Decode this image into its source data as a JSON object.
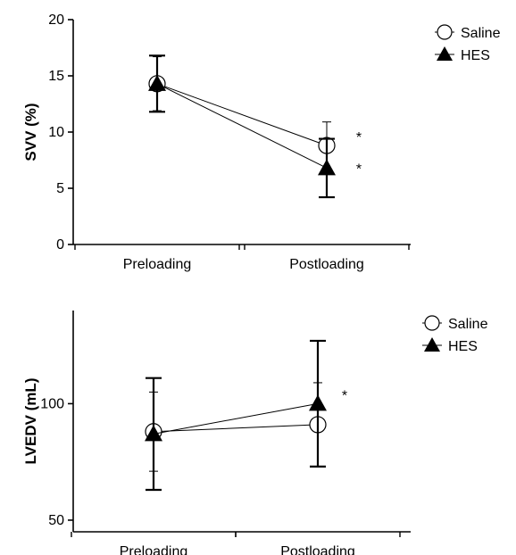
{
  "chart_data": [
    {
      "type": "line",
      "ylabel": "SVV (%)",
      "categories": [
        "Preloading",
        "Postloading"
      ],
      "ylim": [
        0,
        20
      ],
      "yticks": [
        "0",
        "5",
        "10",
        "15",
        "20"
      ],
      "legend": {
        "placement": "top-right"
      },
      "series": [
        {
          "name": "Saline",
          "marker": "open-circle",
          "values": [
            14.3,
            8.8
          ],
          "error": [
            2.4,
            2.1
          ]
        },
        {
          "name": "HES",
          "marker": "filled-triangle",
          "values": [
            14.3,
            6.8
          ],
          "error": [
            2.5,
            2.6
          ]
        }
      ],
      "annotations": [
        {
          "text": "*",
          "category": "Postloading",
          "series": "Saline"
        },
        {
          "text": "*",
          "category": "Postloading",
          "series": "HES"
        }
      ]
    },
    {
      "type": "line",
      "ylabel": "LVEDV (mL)",
      "categories": [
        "Preloading",
        "Postloading"
      ],
      "ylim": [
        45,
        140
      ],
      "yticks": [
        "50",
        "100"
      ],
      "legend": {
        "placement": "top-right"
      },
      "series": [
        {
          "name": "Saline",
          "marker": "open-circle",
          "values": [
            88,
            91
          ],
          "error": [
            17,
            18
          ]
        },
        {
          "name": "HES",
          "marker": "filled-triangle",
          "values": [
            87,
            100
          ],
          "error": [
            24,
            27
          ]
        }
      ],
      "annotations": [
        {
          "text": "*",
          "category": "Postloading",
          "series": "HES"
        }
      ]
    }
  ]
}
